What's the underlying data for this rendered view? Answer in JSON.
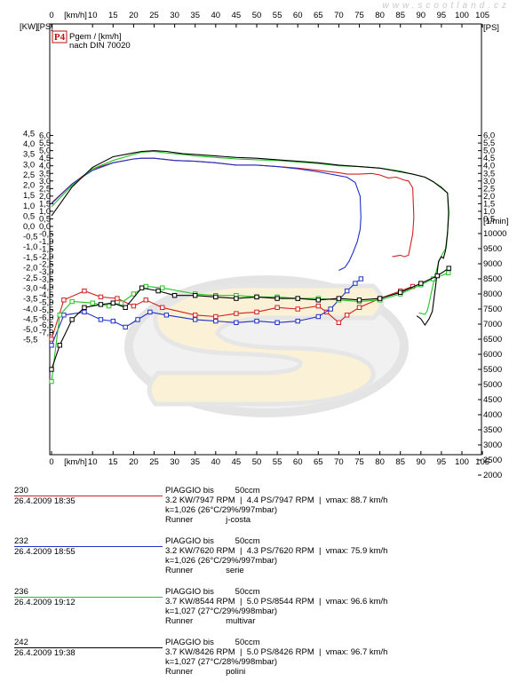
{
  "watermark": "www.scootland.cz",
  "chart_data": {
    "type": "line",
    "title_badge": "P4",
    "title_lines": [
      "Pgem / [km/h]",
      "nach DIN 70020"
    ],
    "x_unit_label": "[km/h]",
    "left_unit_label": "[KW]",
    "left_unit_label2": "[PS]",
    "right_unit_label": "[PS]",
    "rpm_unit_label": "[1/min]",
    "xlim": [
      0,
      105
    ],
    "x_ticks": [
      0,
      10,
      15,
      20,
      25,
      30,
      35,
      40,
      45,
      50,
      55,
      60,
      65,
      70,
      75,
      80,
      85,
      90,
      95,
      100,
      105
    ],
    "kw_ticks": [
      "4,5",
      "4,0",
      "3,5",
      "3,0",
      "2,5",
      "2,0",
      "1,5",
      "1,0",
      "0,5",
      "0,0",
      "-0,5",
      "-1,0",
      "-1,5",
      "-2,0",
      "-2,5",
      "-3,0",
      "-3,5",
      "-4,0",
      "-4,5",
      "-5,0",
      "-5,5"
    ],
    "ps_ticks": [
      "6,0",
      "5,5",
      "5,0",
      "4,5",
      "4,0",
      "3,5",
      "3,0",
      "2,5",
      "2,0",
      "1,5",
      "1,0",
      "0,5"
    ],
    "ps_neg_ticks": [
      "-0,5",
      "-1,0",
      "-1,5",
      "-2,0",
      "-2,5",
      "-3,0",
      "-3,5",
      "-4,0",
      "-4,5",
      "-5,0",
      "-5,5",
      "-6,0",
      "-6,5",
      "-7,0"
    ],
    "rpm_ticks": [
      "10000",
      "9500",
      "9000",
      "8500",
      "8000",
      "7500",
      "7000",
      "6500",
      "6000",
      "5500",
      "5000",
      "4500",
      "4000",
      "3500",
      "3000",
      "2500",
      "2000"
    ],
    "power_ylim_ps": [
      0,
      6.5
    ],
    "rpm_ylim": [
      1500,
      10500
    ],
    "series": [
      {
        "id": "230",
        "color": "#d42020",
        "power": [
          [
            0,
            1.55
          ],
          [
            5,
            2.8
          ],
          [
            10,
            3.8
          ],
          [
            15,
            4.2
          ],
          [
            20,
            4.45
          ],
          [
            22,
            4.5
          ],
          [
            25,
            4.5
          ],
          [
            30,
            4.35
          ],
          [
            35,
            4.3
          ],
          [
            40,
            4.2
          ],
          [
            45,
            4.05
          ],
          [
            50,
            4.05
          ],
          [
            55,
            3.95
          ],
          [
            60,
            3.85
          ],
          [
            65,
            3.7
          ],
          [
            70,
            3.55
          ],
          [
            72,
            3.45
          ],
          [
            75,
            3.45
          ],
          [
            78,
            3.5
          ],
          [
            80,
            3.4
          ],
          [
            82,
            3.2
          ],
          [
            84,
            3.25
          ],
          [
            86,
            3.05
          ],
          [
            87,
            3.0
          ],
          [
            88,
            2.55
          ],
          [
            88.3,
            0.6
          ]
        ],
        "rpm": [
          [
            0,
            6500
          ],
          [
            3,
            7800
          ],
          [
            8,
            8100
          ],
          [
            12,
            7900
          ],
          [
            16,
            7850
          ],
          [
            20,
            7600
          ],
          [
            23,
            7800
          ],
          [
            27,
            7550
          ],
          [
            35,
            7300
          ],
          [
            40,
            7250
          ],
          [
            45,
            7350
          ],
          [
            50,
            7400
          ],
          [
            55,
            7550
          ],
          [
            60,
            7500
          ],
          [
            65,
            7600
          ],
          [
            67,
            7400
          ],
          [
            70,
            7050
          ],
          [
            72,
            7300
          ],
          [
            75,
            7550
          ],
          [
            80,
            7850
          ],
          [
            85,
            8100
          ],
          [
            88,
            8250
          ]
        ],
        "decel": [
          [
            88.3,
            0.6
          ],
          [
            88,
            -0.5
          ],
          [
            87,
            -1.9
          ],
          [
            86,
            -2.0
          ],
          [
            85,
            -1.9
          ],
          [
            83,
            -2.0
          ]
        ]
      },
      {
        "id": "232",
        "color": "#2030c8",
        "power": [
          [
            0,
            1.5
          ],
          [
            5,
            2.8
          ],
          [
            10,
            3.7
          ],
          [
            15,
            4.2
          ],
          [
            20,
            4.45
          ],
          [
            22,
            4.5
          ],
          [
            25,
            4.5
          ],
          [
            30,
            4.35
          ],
          [
            35,
            4.3
          ],
          [
            40,
            4.2
          ],
          [
            45,
            4.05
          ],
          [
            50,
            4.05
          ],
          [
            55,
            3.95
          ],
          [
            60,
            3.8
          ],
          [
            65,
            3.6
          ],
          [
            70,
            3.35
          ],
          [
            72,
            3.25
          ],
          [
            74,
            2.9
          ],
          [
            75.2,
            2.0
          ],
          [
            75.4,
            0.6
          ]
        ],
        "rpm": [
          [
            0,
            6300
          ],
          [
            3,
            7300
          ],
          [
            8,
            7400
          ],
          [
            12,
            7150
          ],
          [
            15,
            7100
          ],
          [
            18,
            6900
          ],
          [
            21,
            7150
          ],
          [
            24,
            7400
          ],
          [
            28,
            7300
          ],
          [
            35,
            7150
          ],
          [
            40,
            7100
          ],
          [
            45,
            7050
          ],
          [
            50,
            7100
          ],
          [
            55,
            7050
          ],
          [
            60,
            7100
          ],
          [
            65,
            7250
          ],
          [
            68,
            7500
          ],
          [
            70,
            7800
          ],
          [
            72,
            8100
          ],
          [
            74,
            8350
          ],
          [
            75.4,
            8500
          ]
        ],
        "decel": [
          [
            75.4,
            0.6
          ],
          [
            75.2,
            -0.2
          ],
          [
            74.5,
            -1.0
          ],
          [
            73.5,
            -1.7
          ],
          [
            72.5,
            -2.3
          ],
          [
            71.5,
            -2.7
          ],
          [
            70,
            -2.9
          ]
        ]
      },
      {
        "id": "236",
        "color": "#22c322",
        "power": [
          [
            0,
            1.3
          ],
          [
            5,
            2.7
          ],
          [
            10,
            3.8
          ],
          [
            15,
            4.35
          ],
          [
            20,
            4.75
          ],
          [
            22,
            4.9
          ],
          [
            25,
            4.95
          ],
          [
            28,
            4.85
          ],
          [
            32,
            4.75
          ],
          [
            35,
            4.65
          ],
          [
            40,
            4.55
          ],
          [
            45,
            4.45
          ],
          [
            50,
            4.4
          ],
          [
            55,
            4.35
          ],
          [
            60,
            4.25
          ],
          [
            65,
            4.15
          ],
          [
            70,
            4.0
          ],
          [
            75,
            3.95
          ],
          [
            80,
            3.85
          ],
          [
            85,
            3.65
          ],
          [
            88,
            3.45
          ],
          [
            91,
            3.25
          ],
          [
            93,
            2.95
          ],
          [
            95,
            2.6
          ],
          [
            96.5,
            2.2
          ],
          [
            96.7,
            0.9
          ]
        ],
        "rpm": [
          [
            0,
            5100
          ],
          [
            2,
            7300
          ],
          [
            5,
            7750
          ],
          [
            10,
            7700
          ],
          [
            14,
            7600
          ],
          [
            17,
            7700
          ],
          [
            20,
            8000
          ],
          [
            23,
            8250
          ],
          [
            27,
            8200
          ],
          [
            35,
            8000
          ],
          [
            40,
            7950
          ],
          [
            45,
            7950
          ],
          [
            50,
            7900
          ],
          [
            55,
            7900
          ],
          [
            60,
            7850
          ],
          [
            65,
            7850
          ],
          [
            70,
            7800
          ],
          [
            75,
            7750
          ],
          [
            80,
            7800
          ],
          [
            85,
            8000
          ],
          [
            90,
            8300
          ],
          [
            93,
            8500
          ],
          [
            96.7,
            8700
          ]
        ],
        "decel": [
          [
            96.7,
            0.9
          ],
          [
            96.5,
            -0.5
          ],
          [
            96.2,
            -1.4
          ],
          [
            95.5,
            -1.7
          ],
          [
            94.5,
            -2.2
          ],
          [
            93.5,
            -3.2
          ],
          [
            92.5,
            -4.4
          ],
          [
            92,
            -5.1
          ],
          [
            91.5,
            -5.6
          ],
          [
            91,
            -5.8
          ],
          [
            89.5,
            -5.7
          ]
        ]
      },
      {
        "id": "242",
        "color": "#000000",
        "power": [
          [
            0,
            0.7
          ],
          [
            5,
            2.6
          ],
          [
            10,
            3.9
          ],
          [
            15,
            4.6
          ],
          [
            20,
            4.85
          ],
          [
            22,
            4.95
          ],
          [
            25,
            5.0
          ],
          [
            28,
            4.95
          ],
          [
            32,
            4.8
          ],
          [
            35,
            4.75
          ],
          [
            40,
            4.65
          ],
          [
            45,
            4.55
          ],
          [
            50,
            4.5
          ],
          [
            55,
            4.4
          ],
          [
            60,
            4.3
          ],
          [
            65,
            4.2
          ],
          [
            70,
            4.05
          ],
          [
            75,
            3.95
          ],
          [
            80,
            3.85
          ],
          [
            85,
            3.6
          ],
          [
            88,
            3.45
          ],
          [
            91,
            3.25
          ],
          [
            93,
            2.95
          ],
          [
            95,
            2.55
          ],
          [
            96.5,
            2.2
          ],
          [
            96.8,
            0.9
          ]
        ],
        "rpm": [
          [
            0,
            5500
          ],
          [
            2,
            6300
          ],
          [
            5,
            7150
          ],
          [
            8,
            7550
          ],
          [
            12,
            7650
          ],
          [
            15,
            7700
          ],
          [
            18,
            7550
          ],
          [
            22,
            8200
          ],
          [
            26,
            8100
          ],
          [
            30,
            7950
          ],
          [
            35,
            7950
          ],
          [
            40,
            7900
          ],
          [
            45,
            7850
          ],
          [
            50,
            7900
          ],
          [
            55,
            7850
          ],
          [
            60,
            7850
          ],
          [
            65,
            7800
          ],
          [
            70,
            7850
          ],
          [
            75,
            7800
          ],
          [
            80,
            7850
          ],
          [
            85,
            8050
          ],
          [
            90,
            8350
          ],
          [
            94,
            8600
          ],
          [
            96.8,
            8850
          ]
        ],
        "decel": [
          [
            96.8,
            0.9
          ],
          [
            96.5,
            -0.4
          ],
          [
            96,
            -1.6
          ],
          [
            95.5,
            -2.1
          ],
          [
            95,
            -2.0
          ],
          [
            94.3,
            -2.3
          ],
          [
            93.5,
            -4.1
          ],
          [
            92.8,
            -5.6
          ],
          [
            92,
            -6.1
          ],
          [
            91,
            -6.5
          ],
          [
            90,
            -6.1
          ],
          [
            89,
            -5.9
          ]
        ]
      }
    ]
  },
  "runs": [
    {
      "id": "230",
      "date": "26.4.2009   18:35",
      "color": "#d42020",
      "model": "PIAGGIO bis         50ccm",
      "result": "3.2 KW/7947 RPM  |  4.4 PS/7947 RPM  |  vmax: 88.7 km/h",
      "conditions": "k=1,026 (26°C/29%/997mbar)",
      "type_line": "Runner              j-costa"
    },
    {
      "id": "232",
      "date": "26.4.2009   18:55",
      "color": "#2030c8",
      "model": "PIAGGIO bis         50ccm",
      "result": "3.2 KW/7620 RPM  |  4.3 PS/7620 RPM  |  vmax: 75.9 km/h",
      "conditions": "k=1,026 (26°C/29%/997mbar)",
      "type_line": "Runner              serie"
    },
    {
      "id": "236",
      "date": "26.4.2009   19:12",
      "color": "#22c322",
      "model": "PIAGGIO bis         50ccm",
      "result": "3.7 KW/8544 RPM  |  5.0 PS/8544 RPM  |  vmax: 96.6 km/h",
      "conditions": "k=1,027 (27°C/29%/998mbar)",
      "type_line": "Runner              multivar"
    },
    {
      "id": "242",
      "date": "26.4.2009   19:38",
      "color": "#000000",
      "model": "PIAGGIO bis         50ccm",
      "result": "3.7 KW/8426 RPM  |  5.0 PS/8426 RPM  |  vmax: 96.7 km/h",
      "conditions": "k=1,027 (27°C/28%/998mbar)",
      "type_line": "Runner              polini"
    }
  ]
}
